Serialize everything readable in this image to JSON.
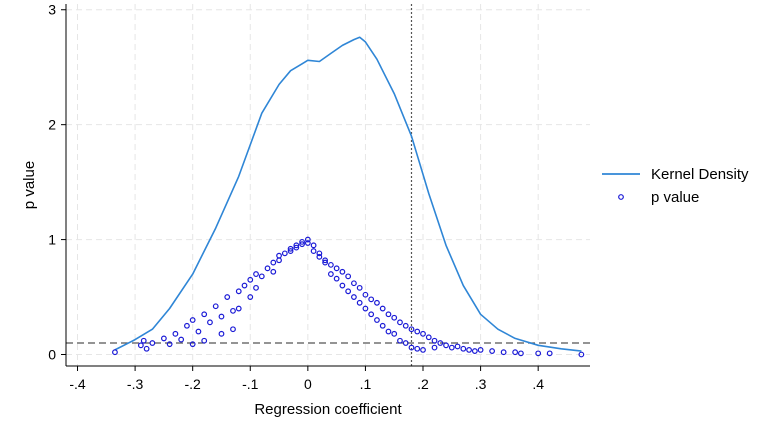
{
  "chart_data": {
    "type": "scatter",
    "xlabel": "Regression coefficient",
    "ylabel": "p value",
    "xlim": [
      -0.42,
      0.49
    ],
    "ylim": [
      -0.1,
      3.05
    ],
    "x_ticks": [
      -0.4,
      -0.3,
      -0.2,
      -0.1,
      0,
      0.1,
      0.2,
      0.3,
      0.4
    ],
    "x_tick_labels": [
      "-.4",
      "-.3",
      "-.2",
      "-.1",
      "0",
      ".1",
      ".2",
      ".3",
      ".4"
    ],
    "y_ticks": [
      0,
      1,
      2,
      3
    ],
    "y_tick_labels": [
      "0",
      "1",
      "2",
      "3"
    ],
    "grid": true,
    "legend_position": "right",
    "reference_lines": [
      {
        "orientation": "vertical",
        "value": 0.18,
        "style": "dotted"
      },
      {
        "orientation": "horizontal",
        "value": 0.1,
        "style": "dashed"
      }
    ],
    "colors": {
      "density": "#2f86d6",
      "points": "#1a1ad6",
      "reference": "#555555",
      "grid": "#e6e6e6"
    },
    "series": [
      {
        "name": "Kernel Density",
        "kind": "line",
        "x": [
          -0.335,
          -0.3,
          -0.27,
          -0.24,
          -0.2,
          -0.16,
          -0.12,
          -0.08,
          -0.05,
          -0.03,
          -0.01,
          0.0,
          0.02,
          0.04,
          0.06,
          0.08,
          0.09,
          0.1,
          0.12,
          0.15,
          0.18,
          0.21,
          0.24,
          0.27,
          0.3,
          0.33,
          0.36,
          0.4,
          0.44,
          0.475
        ],
        "y": [
          0.04,
          0.13,
          0.22,
          0.4,
          0.7,
          1.1,
          1.55,
          2.1,
          2.35,
          2.47,
          2.53,
          2.56,
          2.55,
          2.62,
          2.69,
          2.74,
          2.76,
          2.72,
          2.57,
          2.27,
          1.9,
          1.4,
          0.95,
          0.6,
          0.35,
          0.22,
          0.14,
          0.08,
          0.05,
          0.03
        ]
      },
      {
        "name": "p value",
        "kind": "scatter",
        "x": [
          -0.335,
          -0.29,
          -0.285,
          -0.28,
          -0.27,
          -0.25,
          -0.24,
          -0.23,
          -0.22,
          -0.21,
          -0.2,
          -0.2,
          -0.19,
          -0.18,
          -0.18,
          -0.17,
          -0.16,
          -0.15,
          -0.15,
          -0.14,
          -0.13,
          -0.13,
          -0.12,
          -0.12,
          -0.11,
          -0.1,
          -0.1,
          -0.09,
          -0.09,
          -0.08,
          -0.07,
          -0.06,
          -0.06,
          -0.05,
          -0.05,
          -0.04,
          -0.03,
          -0.03,
          -0.02,
          -0.02,
          -0.01,
          -0.01,
          0.0,
          0.0,
          0.01,
          0.01,
          0.02,
          0.02,
          0.03,
          0.03,
          0.04,
          0.04,
          0.05,
          0.05,
          0.06,
          0.06,
          0.07,
          0.07,
          0.08,
          0.08,
          0.09,
          0.09,
          0.1,
          0.1,
          0.11,
          0.11,
          0.12,
          0.12,
          0.13,
          0.13,
          0.14,
          0.14,
          0.15,
          0.15,
          0.16,
          0.16,
          0.17,
          0.17,
          0.18,
          0.18,
          0.19,
          0.19,
          0.2,
          0.2,
          0.21,
          0.22,
          0.22,
          0.23,
          0.24,
          0.25,
          0.26,
          0.27,
          0.28,
          0.29,
          0.3,
          0.32,
          0.34,
          0.36,
          0.37,
          0.4,
          0.42,
          0.475
        ],
        "y": [
          0.02,
          0.08,
          0.12,
          0.05,
          0.1,
          0.14,
          0.09,
          0.18,
          0.13,
          0.25,
          0.3,
          0.09,
          0.2,
          0.35,
          0.12,
          0.28,
          0.42,
          0.33,
          0.18,
          0.5,
          0.38,
          0.22,
          0.55,
          0.4,
          0.6,
          0.5,
          0.65,
          0.58,
          0.7,
          0.68,
          0.75,
          0.72,
          0.8,
          0.82,
          0.86,
          0.88,
          0.9,
          0.92,
          0.93,
          0.95,
          0.96,
          0.98,
          1.0,
          0.97,
          0.95,
          0.9,
          0.88,
          0.85,
          0.8,
          0.82,
          0.78,
          0.7,
          0.75,
          0.66,
          0.72,
          0.6,
          0.68,
          0.55,
          0.62,
          0.5,
          0.58,
          0.45,
          0.52,
          0.4,
          0.48,
          0.35,
          0.45,
          0.3,
          0.4,
          0.25,
          0.35,
          0.2,
          0.32,
          0.18,
          0.28,
          0.12,
          0.25,
          0.1,
          0.22,
          0.06,
          0.2,
          0.05,
          0.18,
          0.04,
          0.15,
          0.12,
          0.06,
          0.1,
          0.08,
          0.06,
          0.07,
          0.05,
          0.04,
          0.03,
          0.04,
          0.03,
          0.02,
          0.02,
          0.01,
          0.01,
          0.01,
          0.0
        ]
      }
    ]
  }
}
